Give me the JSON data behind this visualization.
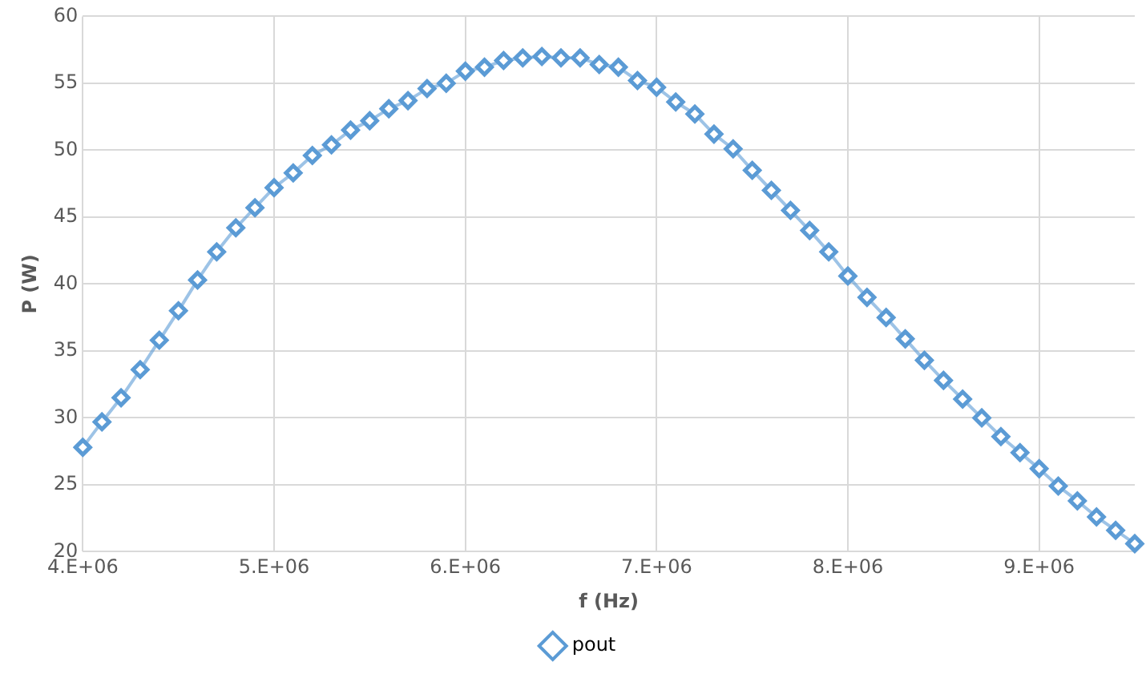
{
  "chart_data": {
    "type": "line",
    "xlabel": "f (Hz)",
    "ylabel": "P (W)",
    "categories": [
      "4.E+06",
      null,
      null,
      null,
      null,
      null,
      null,
      null,
      null,
      null,
      "5.E+06",
      null,
      null,
      null,
      null,
      null,
      null,
      null,
      null,
      null,
      "6.E+06",
      null,
      null,
      null,
      null,
      null,
      null,
      null,
      null,
      null,
      "7.E+06",
      null,
      null,
      null,
      null,
      null,
      null,
      null,
      null,
      null,
      "8.E+06",
      null,
      null,
      null,
      null,
      null,
      null,
      null,
      null,
      null,
      "9.E+06",
      null,
      null,
      null,
      null,
      null
    ],
    "series": [
      {
        "name": "pout",
        "color": "#5b9bd5",
        "values": [
          27.8,
          29.7,
          31.5,
          33.6,
          35.8,
          38.0,
          40.3,
          42.4,
          44.2,
          45.7,
          47.2,
          48.3,
          49.6,
          50.4,
          51.5,
          52.2,
          53.1,
          53.7,
          54.6,
          55.0,
          55.9,
          56.2,
          56.7,
          56.9,
          57.0,
          56.9,
          56.9,
          56.4,
          56.2,
          55.2,
          54.7,
          53.6,
          52.7,
          51.2,
          50.1,
          48.5,
          47.0,
          45.5,
          44.0,
          42.4,
          40.6,
          39.0,
          37.5,
          35.9,
          34.3,
          32.8,
          31.4,
          30.0,
          28.6,
          27.4,
          26.2,
          24.9,
          23.8,
          22.6,
          21.6,
          20.6
        ]
      }
    ],
    "ylim": [
      20,
      60
    ],
    "yticks": [
      20,
      25,
      30,
      35,
      40,
      45,
      50,
      55,
      60
    ],
    "grid": true,
    "legend": "bottom",
    "marker": "diamond",
    "line_style": "solid"
  }
}
